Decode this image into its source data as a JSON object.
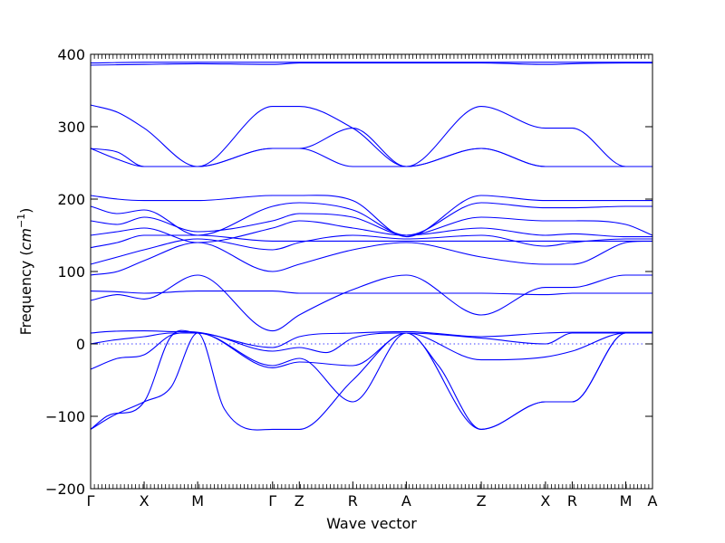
{
  "chart_data": {
    "type": "line",
    "title": "",
    "xlabel": "Wave vector",
    "ylabel_prefix": "Frequency (",
    "ylabel_unit_base": "cm",
    "ylabel_unit_exp": "−1",
    "ylabel_suffix": ")",
    "ylim": [
      -200,
      400
    ],
    "yticks": [
      "400",
      "300",
      "200",
      "100",
      "0",
      "−100",
      "−200"
    ],
    "ytick_values": [
      400,
      300,
      200,
      100,
      0,
      -100,
      -200
    ],
    "grid": false,
    "legend": "none",
    "line_color": "#0000ff",
    "zero_line": {
      "y": 0,
      "style": "dotted"
    },
    "high_symmetry_points": [
      {
        "label": "Γ",
        "x": 0.0
      },
      {
        "label": "X",
        "x": 1.0
      },
      {
        "label": "M",
        "x": 2.0
      },
      {
        "label": "Γ",
        "x": 3.4
      },
      {
        "label": "Z",
        "x": 3.9
      },
      {
        "label": "R",
        "x": 4.9
      },
      {
        "label": "A",
        "x": 5.9
      },
      {
        "label": "Z",
        "x": 7.3
      },
      {
        "label": "X",
        "x": 8.5
      },
      {
        "label": "R",
        "x": 9.0
      },
      {
        "label": "M",
        "x": 10.0
      },
      {
        "label": "A",
        "x": 10.5
      }
    ],
    "series": [
      {
        "x": [
          0,
          0.3,
          1,
          1.5,
          2,
          3.4,
          3.9,
          4.9,
          5.9,
          7.3,
          8.5,
          9,
          10,
          10.5
        ],
        "values": [
          -118,
          -100,
          -80,
          10,
          15,
          -30,
          -20,
          -80,
          15,
          -118,
          -80,
          -80,
          15,
          15
        ]
      },
      {
        "x": [
          0,
          0.4,
          1,
          1.5,
          2,
          2.5,
          3.4,
          3.9,
          4.9,
          5.9,
          6.5,
          7.3,
          8.5,
          9,
          10,
          10.5
        ],
        "values": [
          -118,
          -100,
          -80,
          -60,
          15,
          -90,
          -118,
          -118,
          -50,
          15,
          -30,
          -118,
          -80,
          -80,
          15,
          15
        ]
      },
      {
        "x": [
          0,
          0.5,
          1,
          1.5,
          2,
          3.4,
          3.9,
          4.9,
          5.9,
          7.3,
          8.5,
          9,
          10,
          10.5
        ],
        "values": [
          -35,
          -20,
          -15,
          12,
          15,
          -33,
          -25,
          -30,
          15,
          -22,
          -18,
          -10,
          15,
          15
        ]
      },
      {
        "x": [
          0,
          0.4,
          1,
          1.5,
          2,
          3.4,
          3.9,
          4.4,
          4.9,
          5.9,
          7.3,
          8.5,
          9,
          10,
          10.5
        ],
        "values": [
          0,
          5,
          10,
          15,
          15,
          -10,
          -5,
          -12,
          8,
          15,
          8,
          0,
          15,
          15,
          15
        ]
      },
      {
        "x": [
          0,
          0.3,
          1,
          1.5,
          2,
          3.4,
          3.9,
          4.9,
          5.9,
          7.3,
          8.5,
          9,
          10,
          10.5
        ],
        "values": [
          15,
          17,
          18,
          17,
          16,
          -5,
          10,
          15,
          17,
          10,
          15,
          16,
          16,
          16
        ]
      },
      {
        "x": [
          0,
          0.5,
          1,
          2,
          3.4,
          3.9,
          4.9,
          5.9,
          7.3,
          8.5,
          9,
          10,
          10.5
        ],
        "values": [
          60,
          68,
          62,
          95,
          18,
          40,
          75,
          95,
          40,
          78,
          78,
          95,
          95
        ]
      },
      {
        "x": [
          0,
          0.5,
          1,
          2,
          3.4,
          3.9,
          4.9,
          5.9,
          7.3,
          8.5,
          9,
          10,
          10.5
        ],
        "values": [
          73,
          72,
          70,
          73,
          73,
          70,
          70,
          70,
          70,
          68,
          70,
          70,
          70
        ]
      },
      {
        "x": [
          0,
          0.5,
          1,
          2,
          3.4,
          3.9,
          4.9,
          5.9,
          7.3,
          8.5,
          9,
          10,
          10.5
        ],
        "values": [
          95,
          100,
          115,
          140,
          100,
          110,
          130,
          140,
          120,
          110,
          110,
          140,
          142
        ]
      },
      {
        "x": [
          0,
          0.5,
          1,
          2,
          3.4,
          3.9,
          4.9,
          5.9,
          7.3,
          8.5,
          9,
          10,
          10.5
        ],
        "values": [
          110,
          120,
          130,
          145,
          130,
          140,
          150,
          145,
          150,
          135,
          140,
          145,
          145
        ]
      },
      {
        "x": [
          0,
          0.5,
          1,
          2,
          3.4,
          3.9,
          4.9,
          5.9,
          7.3,
          8.5,
          9,
          10,
          10.5
        ],
        "values": [
          133,
          140,
          150,
          150,
          142,
          142,
          142,
          142,
          142,
          142,
          142,
          142,
          142
        ]
      },
      {
        "x": [
          0,
          0.5,
          1,
          2,
          3.4,
          3.9,
          4.9,
          5.9,
          7.3,
          8.5,
          9,
          10,
          10.5
        ],
        "values": [
          150,
          155,
          160,
          140,
          160,
          170,
          160,
          150,
          160,
          150,
          152,
          148,
          148
        ]
      },
      {
        "x": [
          0,
          0.5,
          1,
          2,
          3.4,
          3.9,
          4.9,
          5.9,
          7.3,
          8.5,
          9,
          10,
          10.5
        ],
        "values": [
          170,
          165,
          175,
          155,
          170,
          180,
          175,
          150,
          175,
          170,
          170,
          165,
          150
        ]
      },
      {
        "x": [
          0,
          0.5,
          1,
          2,
          3.4,
          3.9,
          4.9,
          5.9,
          7.3,
          8.5,
          9,
          10,
          10.5
        ],
        "values": [
          190,
          180,
          185,
          150,
          190,
          195,
          185,
          150,
          195,
          188,
          188,
          190,
          190
        ]
      },
      {
        "x": [
          0,
          0.5,
          1,
          2,
          3.4,
          3.9,
          4.9,
          5.9,
          7.3,
          8.5,
          9,
          10,
          10.5
        ],
        "values": [
          205,
          200,
          198,
          198,
          205,
          205,
          198,
          148,
          205,
          198,
          198,
          198,
          198
        ]
      },
      {
        "x": [
          0,
          0.5,
          1,
          2,
          3.4,
          3.9,
          4.9,
          5.9,
          7.3,
          8.5,
          9,
          10,
          10.5
        ],
        "values": [
          270,
          255,
          245,
          245,
          270,
          270,
          245,
          245,
          270,
          245,
          245,
          245,
          245
        ]
      },
      {
        "x": [
          0,
          0.5,
          1,
          2,
          3.4,
          3.9,
          4.9,
          5.9,
          7.3,
          8.5,
          9,
          10,
          10.5
        ],
        "values": [
          330,
          320,
          298,
          245,
          328,
          328,
          298,
          245,
          328,
          298,
          298,
          245,
          245
        ]
      },
      {
        "x": [
          0,
          0.5,
          1,
          2,
          3.4,
          3.9,
          4.9,
          5.9,
          7.3,
          8.5,
          9,
          10,
          10.5
        ],
        "values": [
          270,
          265,
          245,
          245,
          270,
          270,
          298,
          245,
          270,
          245,
          245,
          245,
          245
        ]
      },
      {
        "x": [
          0,
          1,
          2,
          3.4,
          3.9,
          4.9,
          5.9,
          7.3,
          8.5,
          9,
          10,
          10.5
        ],
        "values": [
          385,
          386,
          387,
          386,
          388,
          388,
          388,
          388,
          386,
          387,
          388,
          388
        ]
      },
      {
        "x": [
          0,
          1,
          2,
          3.4,
          3.9,
          4.9,
          5.9,
          7.3,
          8.5,
          9,
          10,
          10.5
        ],
        "values": [
          388,
          389,
          389,
          389,
          389,
          389,
          389,
          389,
          389,
          389,
          389,
          389
        ]
      }
    ]
  }
}
